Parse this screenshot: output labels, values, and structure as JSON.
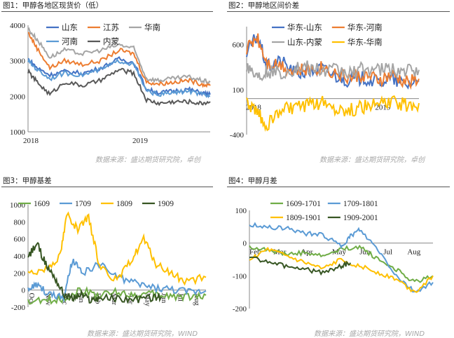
{
  "panels": [
    {
      "title": "图1：甲醇各地区现货价（低）",
      "source": "数据来源：盛达期货研究院，卓创"
    },
    {
      "title": "图2：甲醇地区间价差",
      "source": "数据来源：盛达期货研究院，卓创"
    },
    {
      "title": "图3：甲醇基差",
      "source": "数据来源：盛达期货研究院，WIND"
    },
    {
      "title": "图4：甲醇月差",
      "source": "数据来源：盛达期货研究院，WIND"
    }
  ],
  "colors": {
    "blue": "#4472c4",
    "orange": "#ed7d31",
    "gray": "#a5a5a5",
    "yellow": "#ffc000",
    "lightblue": "#5b9bd5",
    "green": "#70ad47",
    "darkgreen": "#375623",
    "darkgray": "#595959"
  },
  "chart_data": [
    {
      "type": "line",
      "x_tick_labels": [
        "2018",
        "2019"
      ],
      "x_range": [
        "2018-01",
        "2019-09"
      ],
      "ylim": [
        1000,
        4000
      ],
      "y_ticks": [
        1000,
        2000,
        3000,
        4000
      ],
      "legend_position": "top",
      "series": [
        {
          "name": "山东",
          "color": "#4472c4",
          "x": [
            0,
            0.05,
            0.12,
            0.2,
            0.3,
            0.4,
            0.5,
            0.58,
            0.65,
            0.72,
            0.8,
            0.88,
            0.95,
            1.0
          ],
          "y": [
            3050,
            2800,
            2600,
            2700,
            2650,
            2800,
            3050,
            2950,
            2200,
            2100,
            2150,
            2200,
            2100,
            2050
          ]
        },
        {
          "name": "江苏",
          "color": "#ed7d31",
          "x": [
            0,
            0.05,
            0.12,
            0.2,
            0.3,
            0.4,
            0.5,
            0.58,
            0.65,
            0.72,
            0.8,
            0.88,
            0.95,
            1.0
          ],
          "y": [
            3800,
            3350,
            2800,
            3000,
            2900,
            3000,
            3300,
            3200,
            2400,
            2350,
            2400,
            2450,
            2350,
            2300
          ]
        },
        {
          "name": "华南",
          "color": "#a5a5a5",
          "x": [
            0,
            0.05,
            0.12,
            0.2,
            0.3,
            0.4,
            0.5,
            0.58,
            0.65,
            0.72,
            0.8,
            0.88,
            0.95,
            1.0
          ],
          "y": [
            3900,
            3600,
            3100,
            3300,
            3200,
            3300,
            3450,
            3350,
            2500,
            2450,
            2500,
            2550,
            2450,
            2400
          ]
        },
        {
          "name": "河南",
          "color": "#5b9bd5",
          "x": [
            0,
            0.05,
            0.12,
            0.2,
            0.3,
            0.4,
            0.5,
            0.58,
            0.65,
            0.72,
            0.8,
            0.88,
            0.95,
            1.0
          ],
          "y": [
            3000,
            2750,
            2500,
            2650,
            2600,
            2750,
            3000,
            2900,
            2150,
            2050,
            2100,
            2150,
            2050,
            2000
          ]
        },
        {
          "name": "内蒙",
          "color": "#595959",
          "x": [
            0,
            0.05,
            0.12,
            0.2,
            0.3,
            0.4,
            0.5,
            0.58,
            0.65,
            0.72,
            0.8,
            0.88,
            0.95,
            1.0
          ],
          "y": [
            2700,
            2400,
            2050,
            2400,
            2300,
            2450,
            2750,
            2650,
            1900,
            1800,
            1850,
            1850,
            1800,
            1850
          ]
        }
      ]
    },
    {
      "type": "line",
      "x_tick_labels": [
        "2018",
        "2019"
      ],
      "x_range": [
        "2018-01",
        "2019-09"
      ],
      "ylim": [
        -400,
        800
      ],
      "y_ticks": [
        -400,
        100,
        600
      ],
      "legend_position": "top",
      "series": [
        {
          "name": "华东-山东",
          "color": "#4472c4",
          "x": [
            0,
            0.06,
            0.12,
            0.2,
            0.28,
            0.36,
            0.44,
            0.52,
            0.6,
            0.68,
            0.76,
            0.84,
            0.92,
            1.0
          ],
          "y": [
            500,
            700,
            350,
            420,
            280,
            300,
            330,
            250,
            200,
            230,
            180,
            220,
            150,
            200
          ]
        },
        {
          "name": "华东-河南",
          "color": "#ed7d31",
          "x": [
            0,
            0.06,
            0.12,
            0.2,
            0.28,
            0.36,
            0.44,
            0.52,
            0.6,
            0.68,
            0.76,
            0.84,
            0.92,
            1.0
          ],
          "y": [
            550,
            700,
            400,
            380,
            300,
            320,
            350,
            280,
            230,
            260,
            200,
            250,
            180,
            220
          ]
        },
        {
          "name": "山东-内蒙",
          "color": "#a5a5a5",
          "x": [
            0,
            0.06,
            0.12,
            0.2,
            0.28,
            0.36,
            0.44,
            0.52,
            0.6,
            0.68,
            0.76,
            0.84,
            0.92,
            1.0
          ],
          "y": [
            380,
            250,
            300,
            280,
            330,
            350,
            300,
            320,
            280,
            340,
            310,
            330,
            300,
            320
          ]
        },
        {
          "name": "华东-华南",
          "color": "#ffc000",
          "x": [
            0,
            0.06,
            0.12,
            0.2,
            0.28,
            0.36,
            0.44,
            0.52,
            0.6,
            0.68,
            0.76,
            0.84,
            0.92,
            1.0
          ],
          "y": [
            -50,
            -150,
            -300,
            -120,
            -100,
            -80,
            -50,
            -100,
            -130,
            -90,
            -60,
            -40,
            -70,
            -50
          ]
        }
      ]
    },
    {
      "type": "line",
      "x_tick_labels": [
        "Oct",
        "Nov",
        "Dec",
        "Jan",
        "Feb",
        "Mar",
        "Apr",
        "May",
        "Jun",
        "Jul",
        "Aug"
      ],
      "ylim": [
        -200,
        1000
      ],
      "y_ticks": [
        -200,
        0,
        200,
        400,
        600,
        800,
        1000
      ],
      "legend_position": "top",
      "series": [
        {
          "name": "1609",
          "color": "#70ad47",
          "x": [
            0,
            0.1,
            0.2,
            0.3,
            0.4,
            0.5,
            0.6,
            0.7,
            0.8,
            0.9,
            1.0
          ],
          "y": [
            -150,
            -120,
            -100,
            0,
            -60,
            -20,
            -60,
            -50,
            -70,
            -80,
            -60
          ]
        },
        {
          "name": "1709",
          "color": "#5b9bd5",
          "x": [
            0,
            0.05,
            0.12,
            0.2,
            0.25,
            0.3,
            0.4,
            0.5,
            0.6,
            0.7,
            0.8,
            0.9,
            1.0
          ],
          "y": [
            0,
            60,
            -50,
            -100,
            350,
            200,
            300,
            150,
            80,
            30,
            10,
            -20,
            -10
          ]
        },
        {
          "name": "1809",
          "color": "#ffc000",
          "x": [
            0,
            0.1,
            0.18,
            0.22,
            0.28,
            0.34,
            0.4,
            0.5,
            0.58,
            0.65,
            0.72,
            0.8,
            0.88,
            1.0
          ],
          "y": [
            200,
            250,
            400,
            900,
            700,
            850,
            300,
            100,
            350,
            600,
            300,
            200,
            100,
            150
          ]
        },
        {
          "name": "1909",
          "color": "#375623",
          "x": [
            0,
            0.05,
            0.1,
            0.15,
            0.2,
            0.25,
            0.3,
            0.35,
            0.4,
            0.5,
            0.6,
            0.7,
            0.75
          ],
          "y": [
            380,
            550,
            300,
            150,
            -50,
            -100,
            -50,
            -120,
            -90,
            -100,
            -110,
            -90,
            -80
          ]
        }
      ]
    },
    {
      "type": "line",
      "x_tick_labels": [
        "Feb",
        "Mar",
        "Apr",
        "May",
        "Jun",
        "Jul",
        "Aug"
      ],
      "ylim": [
        -200,
        100
      ],
      "y_ticks": [
        -200,
        -100,
        0,
        100
      ],
      "legend_position": "top",
      "series": [
        {
          "name": "1609-1701",
          "color": "#70ad47",
          "x": [
            0,
            0.1,
            0.2,
            0.3,
            0.4,
            0.5,
            0.6,
            0.7,
            0.8,
            0.9,
            1.0
          ],
          "y": [
            -10,
            -20,
            -35,
            -30,
            -40,
            -20,
            -10,
            -50,
            -80,
            -120,
            -100
          ]
        },
        {
          "name": "1709-1801",
          "color": "#5b9bd5",
          "x": [
            0,
            0.1,
            0.2,
            0.3,
            0.4,
            0.5,
            0.55,
            0.6,
            0.7,
            0.8,
            0.9,
            1.0
          ],
          "y": [
            55,
            50,
            45,
            30,
            25,
            -10,
            20,
            40,
            -20,
            -100,
            -150,
            -120
          ]
        },
        {
          "name": "1809-1901",
          "color": "#ffc000",
          "x": [
            0,
            0.1,
            0.2,
            0.3,
            0.4,
            0.5,
            0.6,
            0.7,
            0.8,
            0.9,
            1.0
          ],
          "y": [
            -50,
            -20,
            -40,
            -60,
            -80,
            -50,
            -70,
            -90,
            -110,
            -150,
            -100
          ]
        },
        {
          "name": "1909-2001",
          "color": "#375623",
          "x": [
            0,
            0.1,
            0.2,
            0.3,
            0.4,
            0.5,
            0.55
          ],
          "y": [
            -40,
            -60,
            -70,
            -80,
            -90,
            -70,
            -60
          ]
        }
      ]
    }
  ]
}
